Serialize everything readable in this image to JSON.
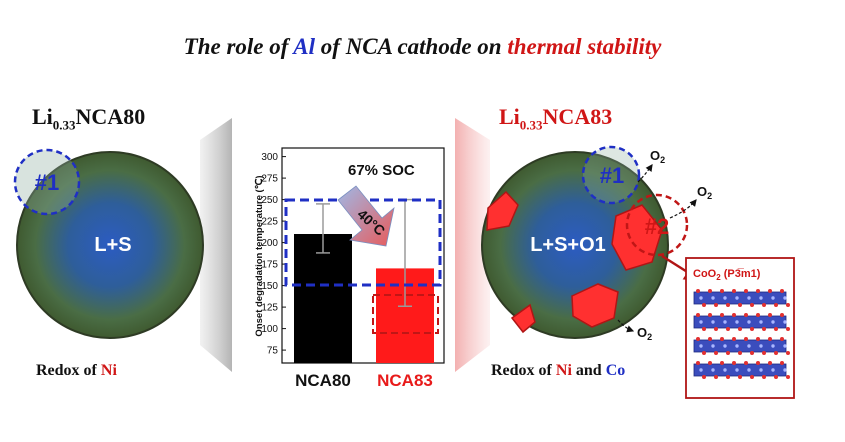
{
  "title": {
    "prefix": "The role of ",
    "element": "Al",
    "middle": " of NCA cathode on ",
    "highlight": "thermal stability"
  },
  "left_panel": {
    "sample_main": "Li",
    "sample_sub": "0.33",
    "sample_rest": "NCA80",
    "phase_label": "L+S",
    "site_marker": "#1",
    "redox_prefix": "Redox of ",
    "redox_element": "Ni"
  },
  "right_panel": {
    "sample_main": "Li",
    "sample_sub": "0.33",
    "sample_rest": "NCA83",
    "phase_label": "L+S+O1",
    "site_marker_1": "#1",
    "site_marker_2": "#2",
    "oxygen_label": "O",
    "oxygen_sub": "2",
    "redox_prefix": "Redox of ",
    "redox_element_1": "Ni",
    "redox_join": " and ",
    "redox_element_2": "Co",
    "structure_label": "CoO",
    "structure_sub": "2",
    "structure_phase": " (P3̅m1)"
  },
  "chart_data": {
    "type": "bar",
    "categories": [
      "NCA80",
      "NCA83"
    ],
    "values": [
      210,
      170
    ],
    "errors": [
      [
        188,
        245
      ],
      [
        126,
        250
      ]
    ],
    "ylabel": "Onset degradation temperature (℃)",
    "ylim": [
      60,
      310
    ],
    "yticks": [
      75,
      100,
      125,
      150,
      175,
      200,
      225,
      250,
      275,
      300
    ],
    "annotation": "67% SOC",
    "shift_label": "40°C",
    "colors": {
      "NCA80": "#000000",
      "NCA83": "#ff1a1a"
    }
  },
  "colors": {
    "accent_blue": "#1f2fc4",
    "accent_red": "#d01616",
    "particle_green": "#4f6a3a",
    "particle_blue": "#2a5bb0"
  }
}
